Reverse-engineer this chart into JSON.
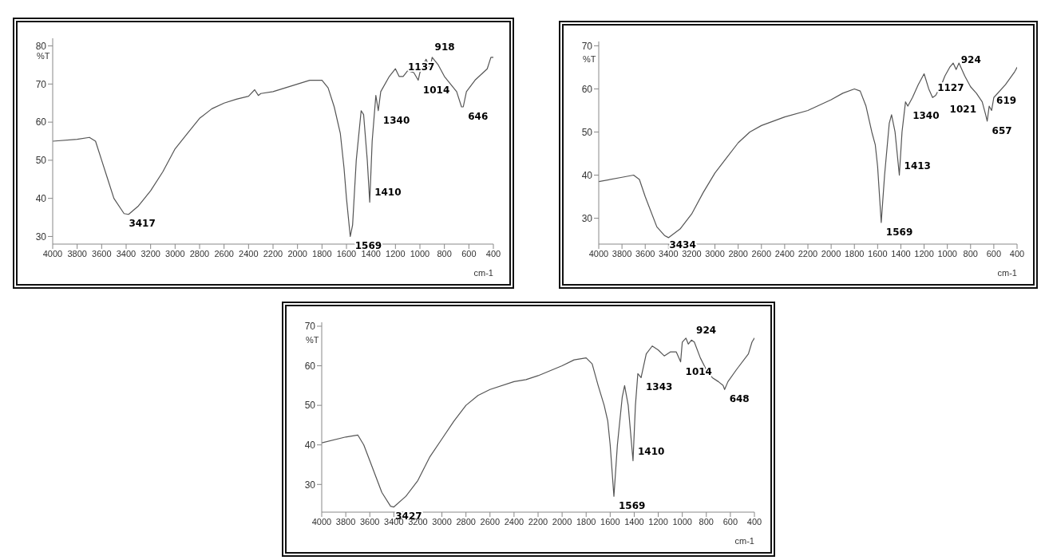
{
  "chart_data": [
    {
      "type": "line",
      "ylabel": "%T",
      "xlabel": "cm-1",
      "xlim": [
        4000,
        400
      ],
      "xticks": [
        4000,
        3800,
        3600,
        3400,
        3200,
        3000,
        2800,
        2600,
        2400,
        2200,
        2000,
        1800,
        1600,
        1400,
        1200,
        1000,
        800,
        600,
        400
      ],
      "ylim": [
        28,
        82
      ],
      "yticks": [
        30,
        40,
        50,
        60,
        70,
        80
      ],
      "legend": false,
      "marker": "none",
      "line_style": "solid",
      "series": [
        {
          "color": "#555555",
          "x": [
            4000,
            3800,
            3700,
            3650,
            3600,
            3550,
            3500,
            3417,
            3380,
            3300,
            3200,
            3100,
            3000,
            2900,
            2800,
            2700,
            2600,
            2500,
            2400,
            2350,
            2320,
            2300,
            2200,
            2000,
            1900,
            1800,
            1750,
            1700,
            1650,
            1620,
            1600,
            1569,
            1550,
            1520,
            1480,
            1460,
            1430,
            1410,
            1390,
            1360,
            1340,
            1320,
            1250,
            1200,
            1170,
            1137,
            1100,
            1050,
            1014,
            1000,
            950,
            930,
            918,
            900,
            850,
            800,
            750,
            700,
            660,
            646,
            620,
            550,
            450,
            420,
            400
          ],
          "values": [
            55,
            55.5,
            56,
            55,
            50,
            45,
            40,
            36,
            35.8,
            38,
            42,
            47,
            53,
            57,
            61,
            63.5,
            65,
            66,
            66.8,
            68.5,
            67,
            67.5,
            68,
            70,
            71,
            71,
            69,
            64,
            57,
            48,
            40,
            30,
            33,
            50,
            63,
            62,
            50,
            39,
            55,
            67,
            63,
            68,
            72,
            74,
            72,
            72,
            73.5,
            73,
            71,
            73,
            76.5,
            75,
            74,
            77,
            75,
            72,
            70,
            68,
            64,
            64,
            68,
            71,
            74,
            77,
            77
          ]
        }
      ],
      "annotations": [
        {
          "text": "3417",
          "x": 3417,
          "y": 36
        },
        {
          "text": "1569",
          "x": 1569,
          "y": 30
        },
        {
          "text": "1410",
          "x": 1410,
          "y": 39
        },
        {
          "text": "1340",
          "x": 1340,
          "y": 63
        },
        {
          "text": "1137",
          "x": 1137,
          "y": 72
        },
        {
          "text": "1014",
          "x": 1014,
          "y": 71
        },
        {
          "text": "918",
          "x": 918,
          "y": 74
        },
        {
          "text": "646",
          "x": 646,
          "y": 64
        }
      ]
    },
    {
      "type": "line",
      "ylabel": "%T",
      "xlabel": "cm-1",
      "xlim": [
        4000,
        400
      ],
      "xticks": [
        4000,
        3800,
        3600,
        3400,
        3200,
        3000,
        2800,
        2600,
        2400,
        2200,
        2000,
        1800,
        1600,
        1400,
        1200,
        1000,
        800,
        600,
        400
      ],
      "ylim": [
        24,
        71
      ],
      "yticks": [
        30,
        40,
        50,
        60,
        70
      ],
      "legend": false,
      "marker": "none",
      "line_style": "solid",
      "series": [
        {
          "color": "#555555",
          "x": [
            4000,
            3800,
            3700,
            3650,
            3600,
            3500,
            3434,
            3400,
            3300,
            3200,
            3100,
            3000,
            2900,
            2800,
            2700,
            2600,
            2400,
            2200,
            2000,
            1900,
            1800,
            1750,
            1700,
            1650,
            1620,
            1600,
            1569,
            1540,
            1500,
            1480,
            1450,
            1413,
            1390,
            1360,
            1340,
            1300,
            1250,
            1200,
            1160,
            1127,
            1100,
            1050,
            1021,
            980,
            950,
            924,
            900,
            850,
            800,
            750,
            700,
            670,
            657,
            640,
            619,
            600,
            500,
            420,
            400
          ],
          "values": [
            38.5,
            39.5,
            40,
            39,
            35,
            28,
            26,
            25.5,
            27.5,
            31,
            36,
            40.5,
            44,
            47.5,
            50,
            51.5,
            53.5,
            55,
            57.5,
            59,
            60,
            59.5,
            56,
            50,
            47,
            42,
            29,
            40,
            52,
            54,
            50,
            40,
            50,
            57,
            56,
            58,
            61,
            63.5,
            60,
            58,
            58.5,
            61,
            63,
            65,
            66,
            64.5,
            66,
            63,
            60.5,
            59,
            57,
            54,
            52.5,
            56,
            55,
            58,
            61,
            64,
            65
          ]
        }
      ],
      "annotations": [
        {
          "text": "3434",
          "x": 3434,
          "y": 26
        },
        {
          "text": "1569",
          "x": 1569,
          "y": 29
        },
        {
          "text": "1413",
          "x": 1413,
          "y": 40
        },
        {
          "text": "1340",
          "x": 1340,
          "y": 56
        },
        {
          "text": "1127",
          "x": 1127,
          "y": 58
        },
        {
          "text": "1021",
          "x": 1021,
          "y": 63
        },
        {
          "text": "924",
          "x": 924,
          "y": 64.5
        },
        {
          "text": "657",
          "x": 657,
          "y": 52.5
        },
        {
          "text": "619",
          "x": 619,
          "y": 55
        }
      ]
    },
    {
      "type": "line",
      "ylabel": "%T",
      "xlabel": "cm-1",
      "xlim": [
        4000,
        400
      ],
      "xticks": [
        4000,
        3800,
        3600,
        3400,
        3200,
        3000,
        2800,
        2600,
        2400,
        2200,
        2000,
        1800,
        1600,
        1400,
        1200,
        1000,
        800,
        600,
        400
      ],
      "ylim": [
        23,
        71
      ],
      "yticks": [
        30,
        40,
        50,
        60,
        70
      ],
      "legend": false,
      "marker": "none",
      "line_style": "solid",
      "series": [
        {
          "color": "#555555",
          "x": [
            4000,
            3800,
            3700,
            3650,
            3600,
            3500,
            3427,
            3400,
            3300,
            3200,
            3100,
            3000,
            2900,
            2800,
            2700,
            2600,
            2400,
            2300,
            2200,
            2000,
            1900,
            1800,
            1750,
            1700,
            1650,
            1620,
            1600,
            1569,
            1540,
            1500,
            1480,
            1450,
            1410,
            1390,
            1370,
            1343,
            1300,
            1250,
            1200,
            1150,
            1100,
            1050,
            1014,
            1000,
            970,
            950,
            924,
            900,
            850,
            800,
            750,
            700,
            660,
            648,
            620,
            550,
            450,
            420,
            400
          ],
          "values": [
            40.5,
            42,
            42.5,
            40,
            36,
            28,
            24.5,
            24.3,
            27,
            31,
            37,
            41.5,
            46,
            50,
            52.5,
            54,
            56,
            56.5,
            57.5,
            60,
            61.5,
            62,
            60.5,
            55,
            50,
            46,
            40,
            27,
            40,
            52,
            55,
            50,
            36,
            50,
            58,
            57,
            63,
            65,
            64,
            62.5,
            63.5,
            63.5,
            61,
            66,
            67,
            65.5,
            66.5,
            66,
            62,
            59,
            57,
            56,
            55,
            54,
            56,
            59,
            63,
            66,
            67
          ]
        }
      ],
      "annotations": [
        {
          "text": "3427",
          "x": 3427,
          "y": 24.5
        },
        {
          "text": "1569",
          "x": 1569,
          "y": 27
        },
        {
          "text": "1410",
          "x": 1410,
          "y": 36
        },
        {
          "text": "1343",
          "x": 1343,
          "y": 57
        },
        {
          "text": "1014",
          "x": 1014,
          "y": 61
        },
        {
          "text": "924",
          "x": 924,
          "y": 66.5
        },
        {
          "text": "648",
          "x": 648,
          "y": 54
        }
      ]
    }
  ]
}
